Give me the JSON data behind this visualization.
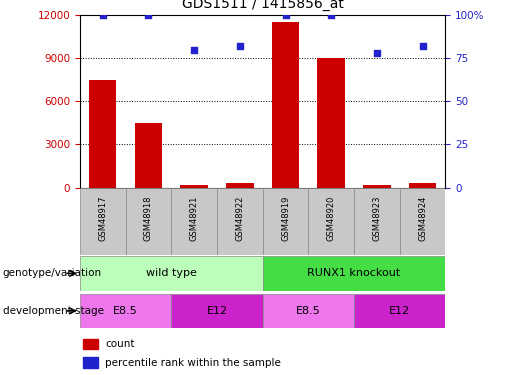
{
  "title": "GDS1511 / 1415856_at",
  "samples": [
    "GSM48917",
    "GSM48918",
    "GSM48921",
    "GSM48922",
    "GSM48919",
    "GSM48920",
    "GSM48923",
    "GSM48924"
  ],
  "counts": [
    7500,
    4500,
    200,
    300,
    11500,
    9000,
    200,
    300
  ],
  "percentiles": [
    100,
    100,
    80,
    82,
    100,
    100,
    78,
    82
  ],
  "ylim_left": [
    0,
    12000
  ],
  "ylim_right": [
    0,
    100
  ],
  "yticks_left": [
    0,
    3000,
    6000,
    9000,
    12000
  ],
  "yticks_right": [
    0,
    25,
    50,
    75,
    100
  ],
  "ytick_labels_right": [
    "0",
    "25",
    "50",
    "75",
    "100%"
  ],
  "bar_color": "#CC0000",
  "scatter_color": "#2222CC",
  "tick_color_left": "#CC0000",
  "tick_color_right": "#2222CC",
  "genotype_groups": [
    {
      "label": "wild type",
      "start": 0,
      "end": 4,
      "color": "#BBFFBB"
    },
    {
      "label": "RUNX1 knockout",
      "start": 4,
      "end": 8,
      "color": "#44DD44"
    }
  ],
  "dev_stage_groups": [
    {
      "label": "E8.5",
      "start": 0,
      "end": 2,
      "color": "#EE77EE"
    },
    {
      "label": "E12",
      "start": 2,
      "end": 4,
      "color": "#CC22CC"
    },
    {
      "label": "E8.5",
      "start": 4,
      "end": 6,
      "color": "#EE77EE"
    },
    {
      "label": "E12",
      "start": 6,
      "end": 8,
      "color": "#CC22CC"
    }
  ],
  "legend_items": [
    {
      "label": "count",
      "color": "#CC0000"
    },
    {
      "label": "percentile rank within the sample",
      "color": "#2222CC"
    }
  ],
  "sample_box_color": "#C8C8C8"
}
